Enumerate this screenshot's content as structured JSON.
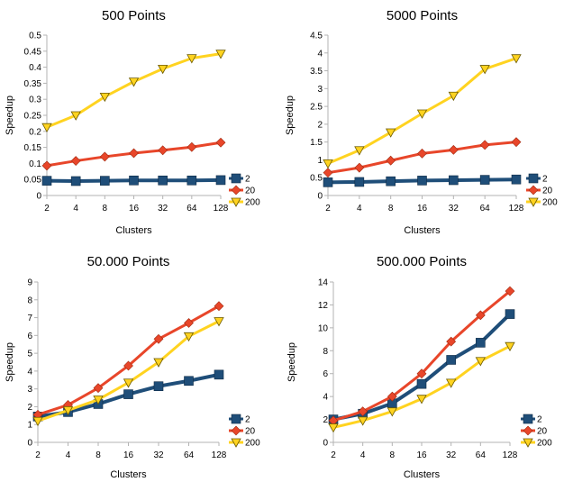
{
  "chart_data": [
    {
      "type": "line",
      "title": "500 Points",
      "xlabel": "Clusters",
      "ylabel": "Speedup",
      "categories": [
        "2",
        "4",
        "8",
        "16",
        "32",
        "64",
        "128"
      ],
      "ylim": [
        0,
        0.5
      ],
      "yticks": [
        "0",
        "0.05",
        "0.1",
        "0.15",
        "0.2",
        "0.25",
        "0.3",
        "0.35",
        "0.4",
        "0.45",
        "0.5"
      ],
      "grid": false,
      "legend": "right",
      "series": [
        {
          "name": "2",
          "color": "#1f4e79",
          "marker": "square",
          "values": [
            0.046,
            0.045,
            0.046,
            0.047,
            0.047,
            0.047,
            0.048
          ]
        },
        {
          "name": "20",
          "color": "#e8462a",
          "marker": "diamond",
          "values": [
            0.093,
            0.108,
            0.121,
            0.132,
            0.141,
            0.151,
            0.165
          ]
        },
        {
          "name": "200",
          "color": "#ffd320",
          "marker": "triangle",
          "values": [
            0.213,
            0.25,
            0.308,
            0.355,
            0.395,
            0.428,
            0.442
          ]
        }
      ]
    },
    {
      "type": "line",
      "title": "5000 Points",
      "xlabel": "Clusters",
      "ylabel": "Speedup",
      "categories": [
        "2",
        "4",
        "8",
        "16",
        "32",
        "64",
        "128"
      ],
      "ylim": [
        0,
        4.5
      ],
      "yticks": [
        "0",
        "0.5",
        "1",
        "1.5",
        "2",
        "2.5",
        "3",
        "3.5",
        "4",
        "4.5"
      ],
      "grid": false,
      "legend": "right",
      "series": [
        {
          "name": "2",
          "color": "#1f4e79",
          "marker": "square",
          "values": [
            0.37,
            0.38,
            0.4,
            0.42,
            0.43,
            0.44,
            0.45
          ]
        },
        {
          "name": "20",
          "color": "#e8462a",
          "marker": "diamond",
          "values": [
            0.64,
            0.78,
            0.98,
            1.18,
            1.28,
            1.42,
            1.5
          ]
        },
        {
          "name": "200",
          "color": "#ffd320",
          "marker": "triangle",
          "values": [
            0.9,
            1.27,
            1.77,
            2.3,
            2.8,
            3.55,
            3.85
          ]
        }
      ]
    },
    {
      "type": "line",
      "title": "50.000 Points",
      "xlabel": "Clusters",
      "ylabel": "Speedup",
      "categories": [
        "2",
        "4",
        "8",
        "16",
        "32",
        "64",
        "128"
      ],
      "ylim": [
        0,
        9
      ],
      "yticks": [
        "0",
        "1",
        "2",
        "3",
        "4",
        "5",
        "6",
        "7",
        "8",
        "9"
      ],
      "grid": false,
      "legend": "right",
      "series": [
        {
          "name": "2",
          "color": "#1f4e79",
          "marker": "square",
          "values": [
            1.45,
            1.7,
            2.15,
            2.7,
            3.15,
            3.45,
            3.8
          ]
        },
        {
          "name": "20",
          "color": "#e8462a",
          "marker": "diamond",
          "values": [
            1.55,
            2.1,
            3.05,
            4.3,
            5.8,
            6.7,
            7.65
          ]
        },
        {
          "name": "200",
          "color": "#ffd320",
          "marker": "triangle",
          "values": [
            1.2,
            1.8,
            2.4,
            3.35,
            4.5,
            5.95,
            6.8
          ]
        }
      ]
    },
    {
      "type": "line",
      "title": "500.000 Points",
      "xlabel": "Clusters",
      "ylabel": "Speedup",
      "categories": [
        "2",
        "4",
        "8",
        "16",
        "32",
        "64",
        "128"
      ],
      "ylim": [
        0,
        14
      ],
      "yticks": [
        "0",
        "2",
        "4",
        "6",
        "8",
        "10",
        "12",
        "14"
      ],
      "grid": false,
      "legend": "right",
      "series": [
        {
          "name": "2",
          "color": "#1f4e79",
          "marker": "square",
          "values": [
            2.0,
            2.5,
            3.4,
            5.1,
            7.2,
            8.7,
            11.2
          ]
        },
        {
          "name": "20",
          "color": "#e8462a",
          "marker": "diamond",
          "values": [
            1.9,
            2.7,
            4.0,
            6.0,
            8.8,
            11.1,
            13.2
          ]
        },
        {
          "name": "200",
          "color": "#ffd320",
          "marker": "triangle",
          "values": [
            1.3,
            1.9,
            2.7,
            3.8,
            5.2,
            7.1,
            8.4
          ]
        }
      ]
    }
  ]
}
